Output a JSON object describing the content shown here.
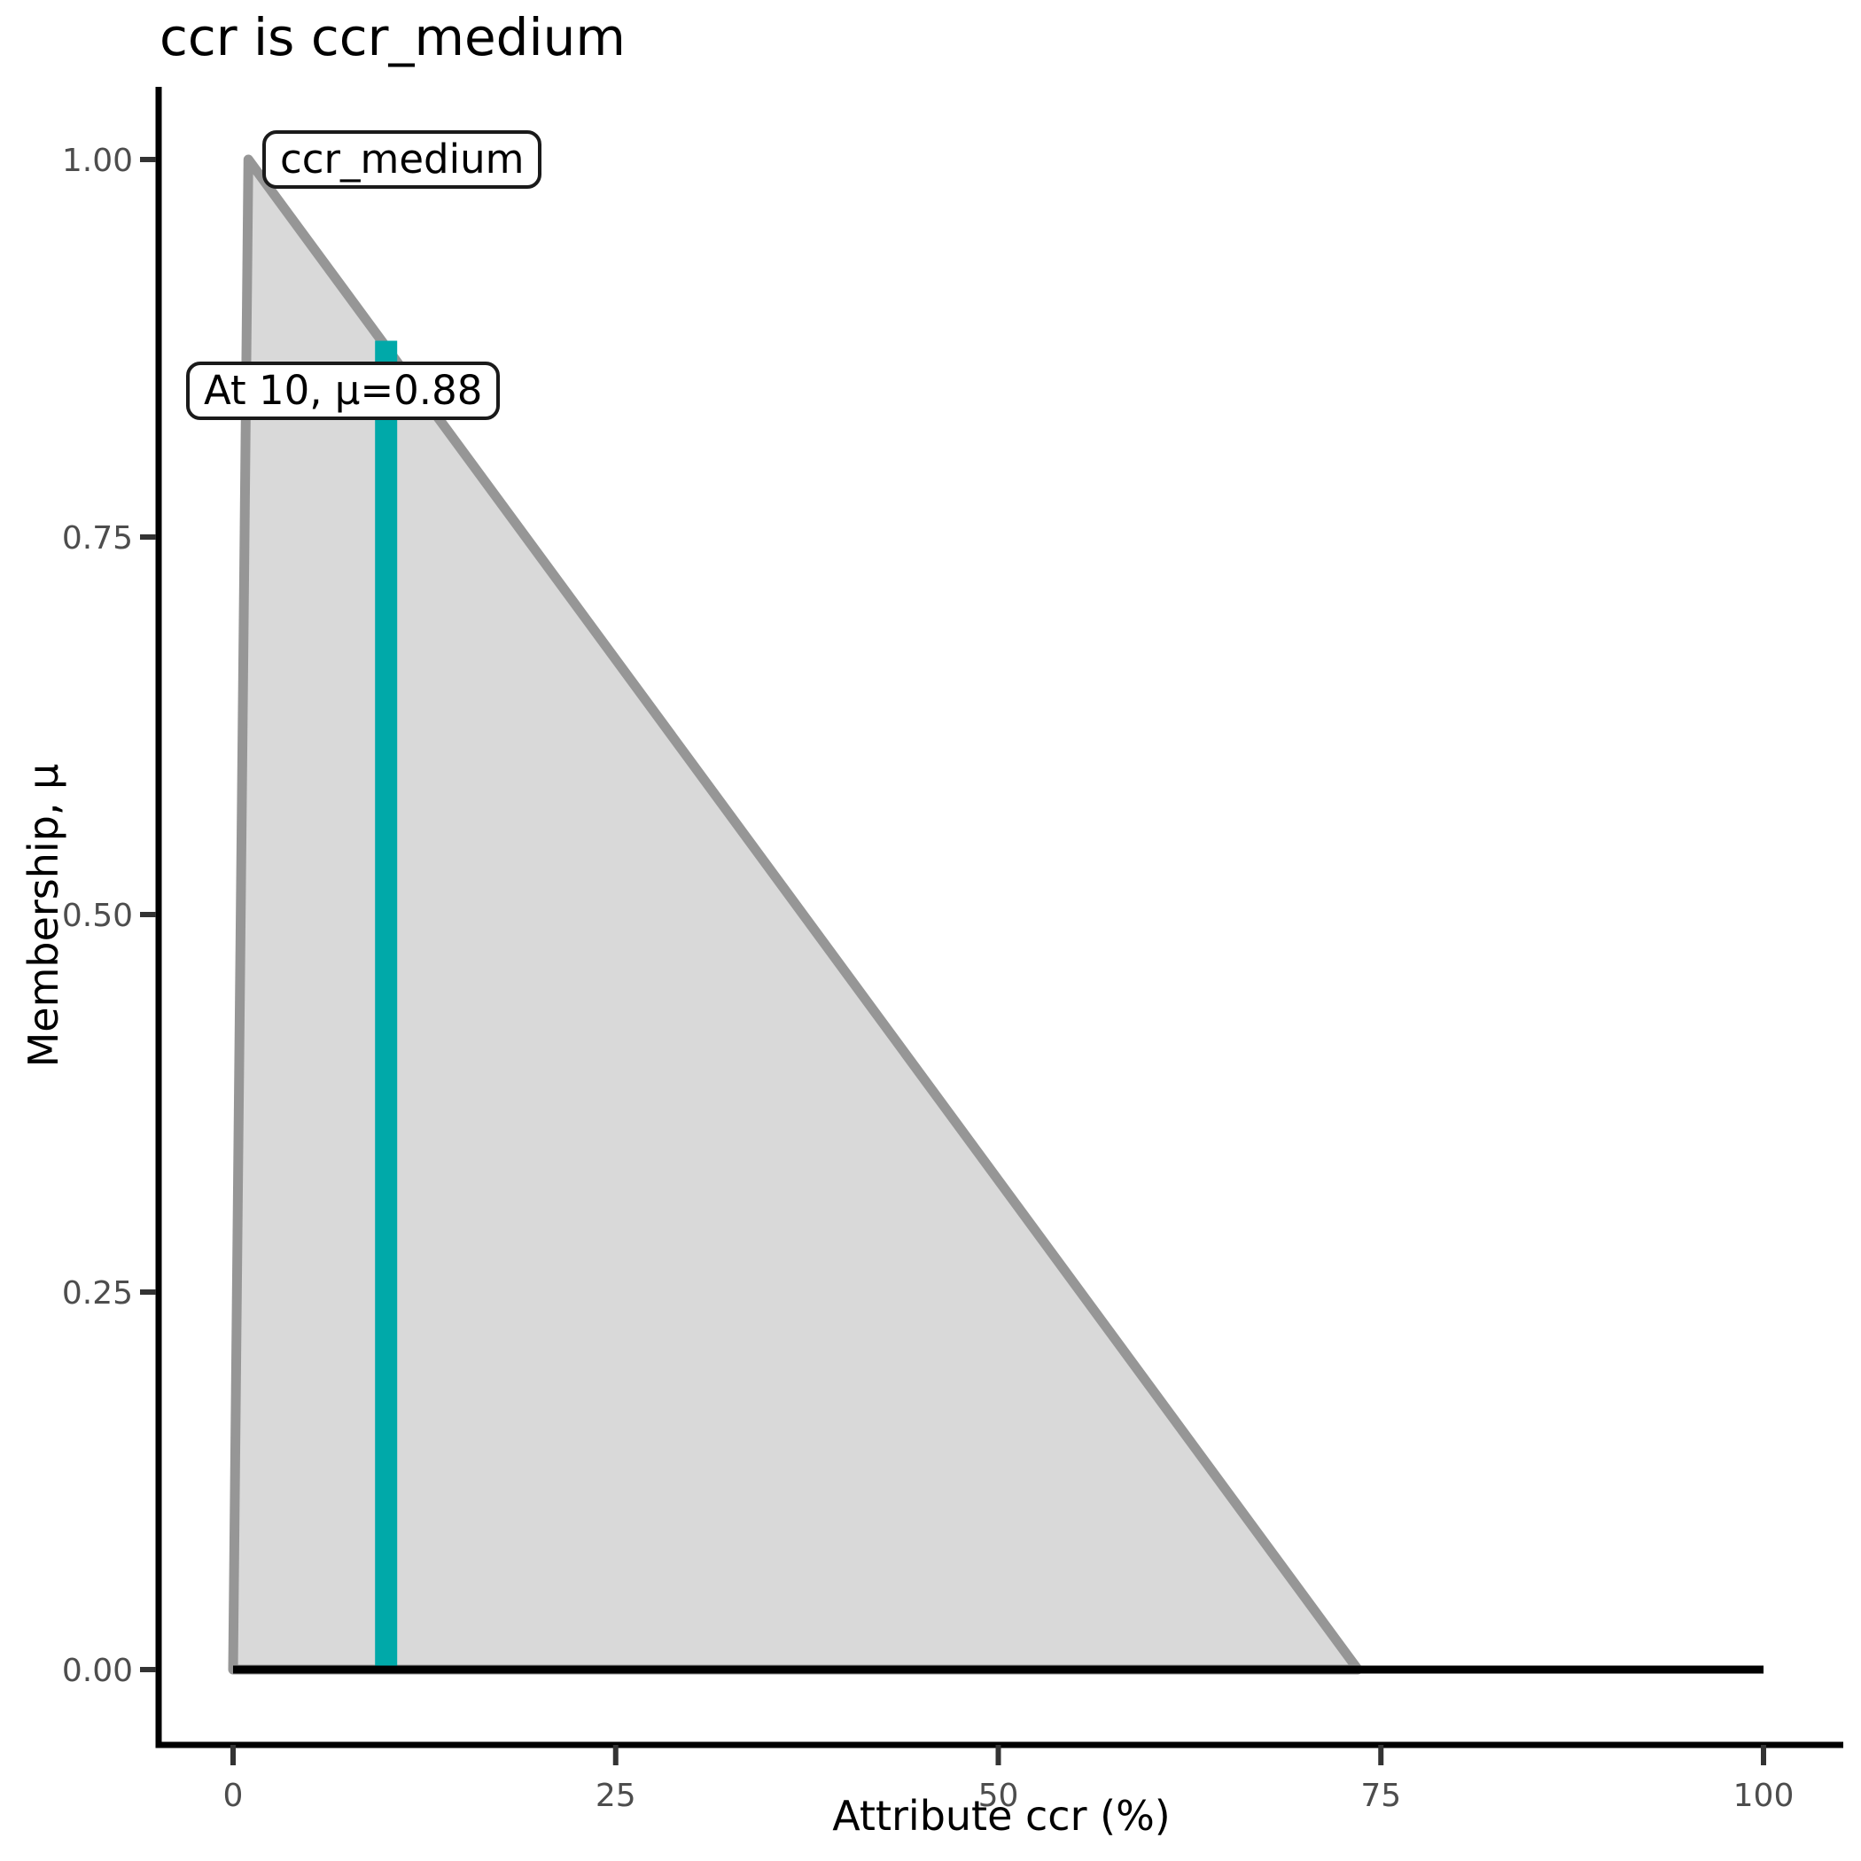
{
  "chart_data": {
    "type": "area",
    "title": "ccr is ccr_medium",
    "xlabel": "Attribute ccr (%)",
    "ylabel": "Membership, μ",
    "xlim": [
      0,
      100
    ],
    "ylim": [
      0,
      1
    ],
    "grid": false,
    "legend": "none",
    "x_ticks": [
      0,
      25,
      50,
      75,
      100
    ],
    "x_tick_labels": [
      "0",
      "25",
      "50",
      "75",
      "100"
    ],
    "y_ticks": [
      0,
      0.25,
      0.5,
      0.75,
      1
    ],
    "y_tick_labels": [
      "0.00",
      "0.25",
      "0.50",
      "0.75",
      "1.00"
    ],
    "series": [
      {
        "name": "ccr_medium",
        "kind": "membership-function",
        "shape": "triangular",
        "points": [
          [
            0,
            0
          ],
          [
            1,
            1
          ],
          [
            73.5,
            0
          ]
        ],
        "fill": "#D9D9D9",
        "stroke": "#969696"
      },
      {
        "name": "zero-baseline",
        "kind": "hline",
        "y": 0,
        "x_start": 0,
        "x_end": 100,
        "stroke": "#000000"
      },
      {
        "name": "highlight-at-x",
        "kind": "vline",
        "x": 10,
        "mu": 0.88,
        "stroke": "#00A9A9"
      }
    ],
    "annotations": [
      {
        "text": "ccr_medium"
      },
      {
        "text": "At 10, μ=0.88"
      }
    ],
    "colors": {
      "tick_label": "#4D4D4D",
      "tick_mark": "#333333",
      "axis_line": "#000000",
      "fill_gray": "#D9D9D9",
      "stroke_gray": "#969696",
      "highlight_teal": "#00A9A9"
    }
  }
}
